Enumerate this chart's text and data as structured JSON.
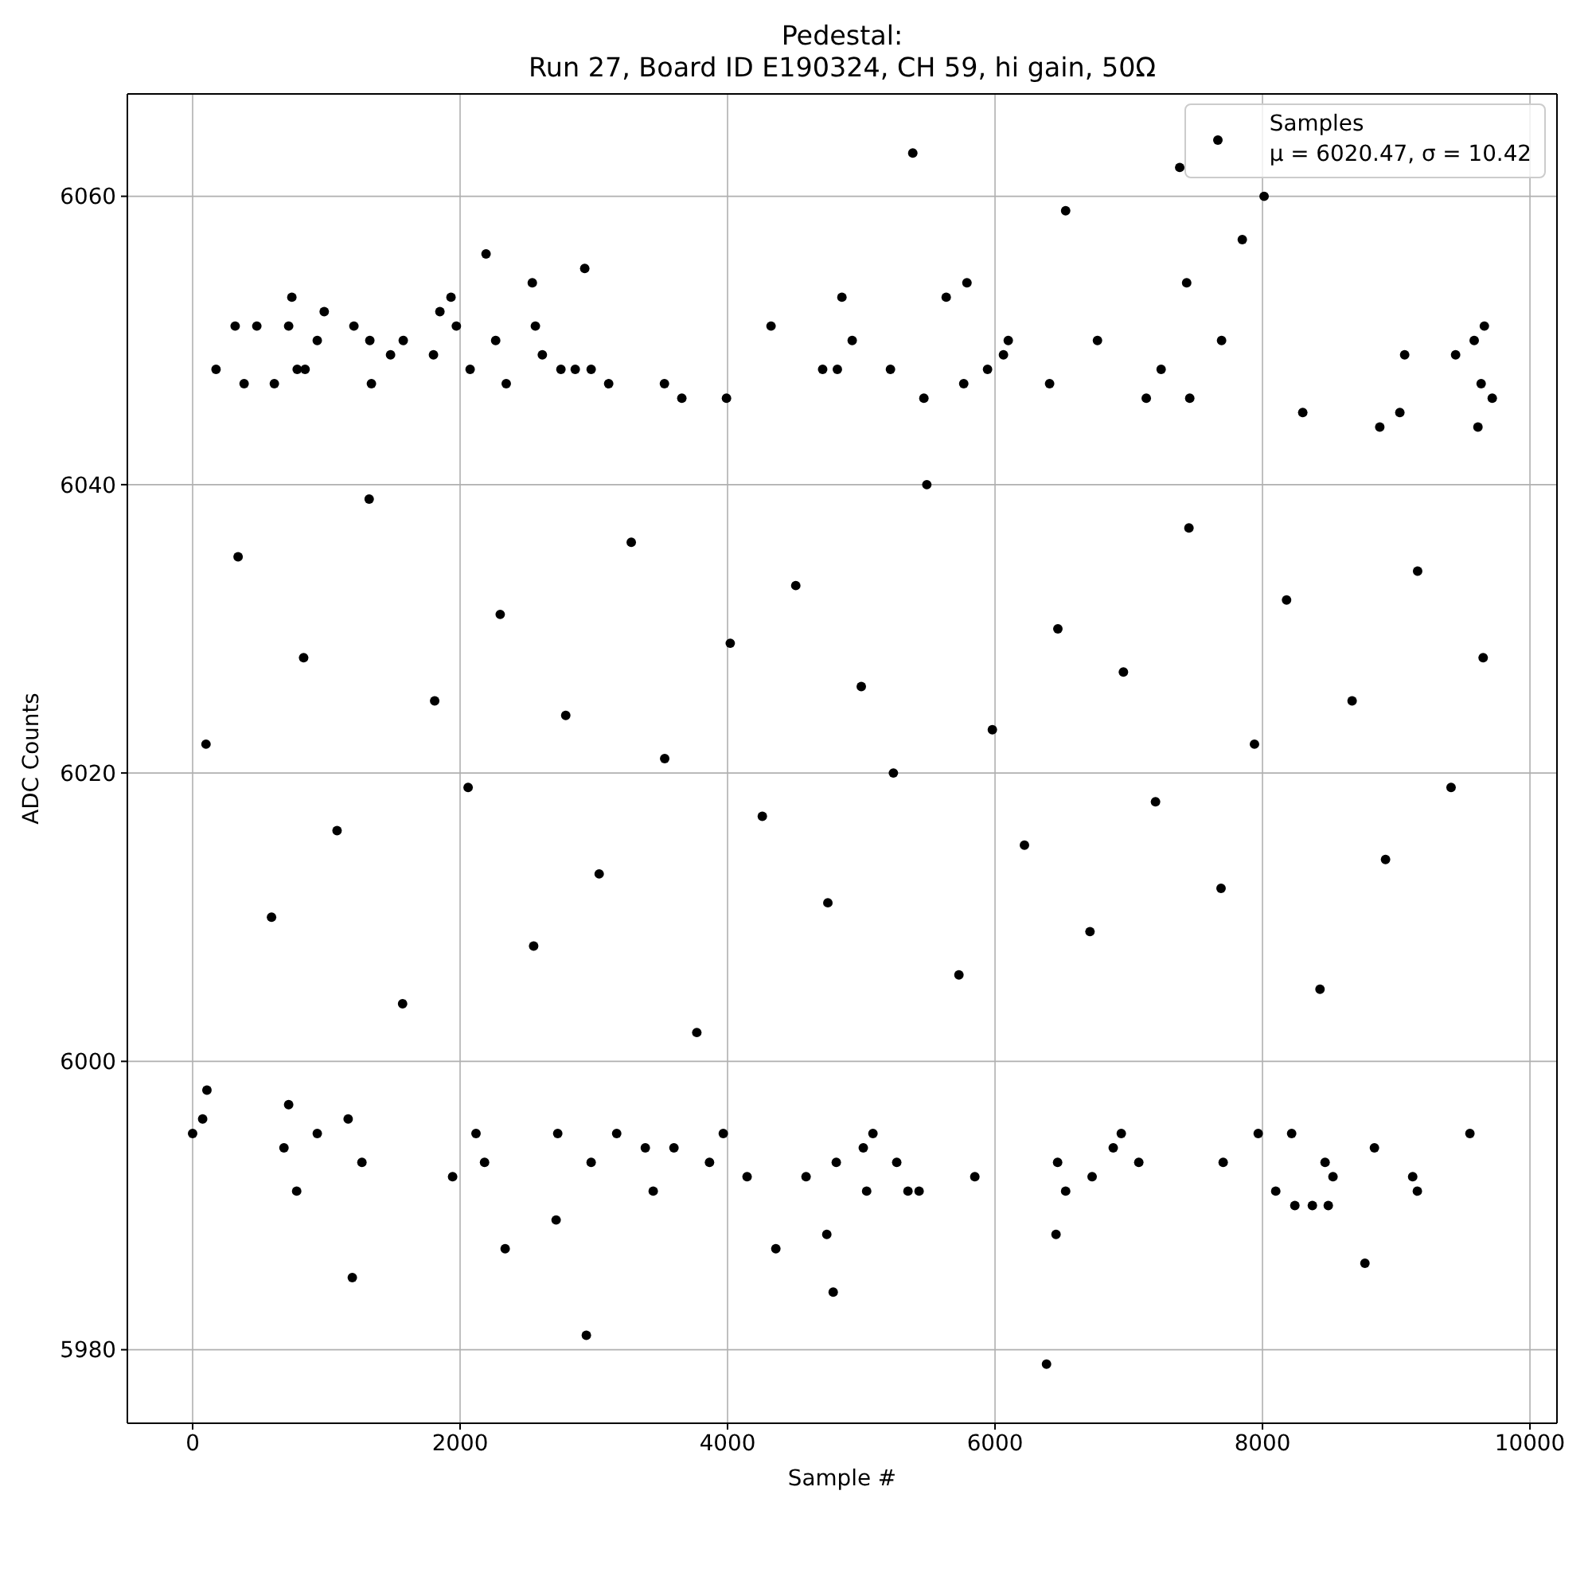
{
  "chart_data": {
    "type": "scatter",
    "title": "Pedestal:\nRun 27, Board ID E190324, CH 59, hi gain, 50Ω",
    "xlabel": "Sample #",
    "ylabel": "ADC Counts",
    "x": [
      5385,
      7381,
      8012,
      6528,
      7849,
      2194,
      2932,
      2540,
      5790,
      7433,
      742,
      1932,
      4855,
      5635,
      984,
      1849,
      318,
      480,
      718,
      1206,
      1972,
      2563,
      4325,
      9659,
      932,
      1325,
      1575,
      2266,
      4932,
      6099,
      6766,
      7694,
      9583,
      1480,
      1801,
      2615,
      6063,
      9063,
      9444,
      175,
      782,
      841,
      2075,
      2754,
      2861,
      2980,
      4711,
      4821,
      5218,
      5944,
      7242,
      385,
      611,
      1337,
      2345,
      3111,
      3528,
      5766,
      6408,
      9635,
      3658,
      3992,
      5468,
      7131,
      7456,
      9718,
      8301,
      9027,
      8877,
      9611,
      6385,
      2944,
      4790,
      1194,
      8766,
      2337,
      4361,
      4742,
      6456,
      2718,
      8242,
      8373,
      8492,
      778,
      3444,
      5040,
      5349,
      5432,
      6528,
      8099,
      9158,
      1944,
      4146,
      4587,
      5849,
      6726,
      8527,
      9123,
      1266,
      2183,
      2980,
      3865,
      4813,
      5265,
      6468,
      7075,
      7706,
      8468,
      683,
      3385,
      3599,
      5015,
      6884,
      8837,
      0,
      932,
      2119,
      2730,
      3171,
      3968,
      5087,
      6944,
      7968,
      8218,
      9551,
      75,
      1163,
      718,
      107,
      100,
      340,
      590,
      830,
      1080,
      1320,
      1570,
      1810,
      2060,
      2300,
      2550,
      2790,
      3040,
      3280,
      3530,
      3770,
      4020,
      4260,
      4510,
      4750,
      5000,
      5240,
      5490,
      5730,
      5980,
      6220,
      6470,
      6710,
      6960,
      7200,
      7450,
      7690,
      7940,
      8180,
      8430,
      8670,
      8920,
      9160,
      9410,
      9650
    ],
    "series": [
      {
        "name": "Samples\nμ = 6020.47, σ = 10.42",
        "color": "#000000",
        "values": [
          6063,
          6062,
          6060,
          6059,
          6057,
          6056,
          6055,
          6054,
          6054,
          6054,
          6053,
          6053,
          6053,
          6053,
          6052,
          6052,
          6051,
          6051,
          6051,
          6051,
          6051,
          6051,
          6051,
          6051,
          6050,
          6050,
          6050,
          6050,
          6050,
          6050,
          6050,
          6050,
          6050,
          6049,
          6049,
          6049,
          6049,
          6049,
          6049,
          6048,
          6048,
          6048,
          6048,
          6048,
          6048,
          6048,
          6048,
          6048,
          6048,
          6048,
          6048,
          6047,
          6047,
          6047,
          6047,
          6047,
          6047,
          6047,
          6047,
          6047,
          6046,
          6046,
          6046,
          6046,
          6046,
          6046,
          6045,
          6045,
          6044,
          6044,
          5979,
          5981,
          5984,
          5985,
          5986,
          5987,
          5987,
          5988,
          5988,
          5989,
          5990,
          5990,
          5990,
          5991,
          5991,
          5991,
          5991,
          5991,
          5991,
          5991,
          5991,
          5992,
          5992,
          5992,
          5992,
          5992,
          5992,
          5992,
          5993,
          5993,
          5993,
          5993,
          5993,
          5993,
          5993,
          5993,
          5993,
          5993,
          5994,
          5994,
          5994,
          5994,
          5994,
          5994,
          5995,
          5995,
          5995,
          5995,
          5995,
          5995,
          5995,
          5995,
          5995,
          5995,
          5995,
          5996,
          5996,
          5997,
          5998,
          6022,
          6035,
          6010,
          6028,
          6016,
          6039,
          6004,
          6025,
          6019,
          6031,
          6008,
          6024,
          6013,
          6036,
          6021,
          6002,
          6029,
          6017,
          6033,
          6011,
          6026,
          6020,
          6040,
          6006,
          6023,
          6015,
          6030,
          6009,
          6027,
          6018,
          6037,
          6012,
          6022,
          6032,
          6005,
          6025,
          6014,
          6034,
          6019,
          6028
        ]
      }
    ],
    "xlim": [
      -488,
      10202
    ],
    "ylim": [
      5974.9,
      6067.1
    ],
    "xticks": [
      0,
      2000,
      4000,
      6000,
      8000,
      10000
    ],
    "yticks": [
      5980,
      6000,
      6020,
      6040,
      6060
    ],
    "grid": true,
    "legend": "top right",
    "marker": "circle"
  }
}
